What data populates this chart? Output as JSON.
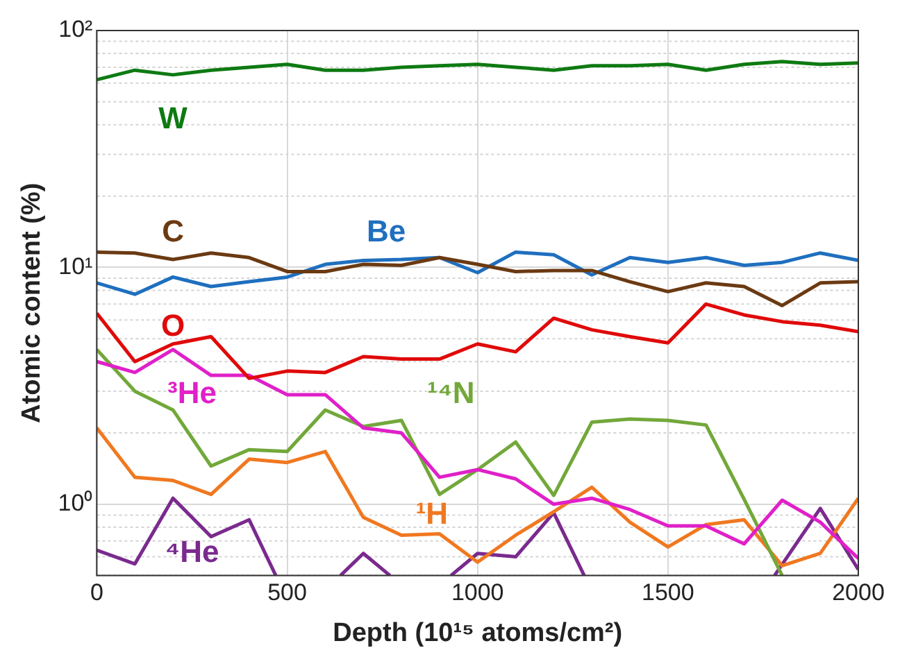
{
  "chart_data": {
    "type": "line",
    "xlabel": "Depth (10¹⁵ atoms/cm²)",
    "ylabel": "Atomic content (%)",
    "log": "y",
    "grid": true,
    "legend": false,
    "marker": "none",
    "x": [
      0,
      100,
      200,
      300,
      400,
      500,
      600,
      700,
      800,
      900,
      1000,
      1100,
      1200,
      1300,
      1400,
      1500,
      1600,
      1700,
      1800,
      1900,
      2000
    ],
    "xlim": [
      0,
      2000
    ],
    "xticks": [
      0,
      500,
      1000,
      1500,
      2000
    ],
    "ylim": [
      0.5,
      100
    ],
    "yticks": [
      {
        "value": 0.5,
        "label": null
      },
      {
        "value": 0.6,
        "label": null
      },
      {
        "value": 0.7,
        "label": null
      },
      {
        "value": 0.8,
        "label": null
      },
      {
        "value": 0.9,
        "label": null
      },
      {
        "value": 1,
        "label": "10⁰"
      },
      {
        "value": 2,
        "label": null
      },
      {
        "value": 3,
        "label": null
      },
      {
        "value": 4,
        "label": null
      },
      {
        "value": 5,
        "label": null
      },
      {
        "value": 6,
        "label": null
      },
      {
        "value": 7,
        "label": null
      },
      {
        "value": 8,
        "label": null
      },
      {
        "value": 9,
        "label": null
      },
      {
        "value": 10,
        "label": "10¹"
      },
      {
        "value": 20,
        "label": null
      },
      {
        "value": 30,
        "label": null
      },
      {
        "value": 40,
        "label": null
      },
      {
        "value": 50,
        "label": null
      },
      {
        "value": 60,
        "label": null
      },
      {
        "value": 70,
        "label": null
      },
      {
        "value": 80,
        "label": null
      },
      {
        "value": 90,
        "label": null
      },
      {
        "value": 100,
        "label": "10²"
      }
    ],
    "series": [
      {
        "name": "W",
        "color": "#0e7a12",
        "values": [
          62,
          68,
          65,
          68,
          70,
          72,
          68,
          68,
          70,
          71,
          72,
          70,
          68,
          71,
          71,
          72,
          68,
          72,
          74,
          72,
          73
        ]
      },
      {
        "name": "C",
        "color": "#6b3a12",
        "values": [
          11.6,
          11.5,
          10.8,
          11.5,
          11,
          9.6,
          9.6,
          10.3,
          10.2,
          11,
          10.3,
          9.6,
          9.7,
          9.7,
          8.7,
          7.9,
          8.6,
          8.3,
          6.9,
          8.6,
          8.7
        ]
      },
      {
        "name": "Be",
        "color": "#1f6fbf",
        "values": [
          8.6,
          7.7,
          9.1,
          8.3,
          8.7,
          9.1,
          10.3,
          10.7,
          10.8,
          11,
          9.5,
          11.6,
          11.3,
          9.3,
          11,
          10.5,
          11,
          10.2,
          10.5,
          11.5,
          10.7
        ]
      },
      {
        "name": "O",
        "color": "#e00a0a",
        "values": [
          6.4,
          4,
          4.75,
          5.1,
          3.4,
          3.65,
          3.6,
          4.2,
          4.1,
          4.1,
          4.75,
          4.4,
          6.1,
          5.45,
          5.1,
          4.8,
          7,
          6.3,
          5.9,
          5.7,
          5.35
        ]
      },
      {
        "name": "³He",
        "color": "#e020c8",
        "values": [
          4,
          3.6,
          4.5,
          3.5,
          3.5,
          2.9,
          2.9,
          2.1,
          2,
          1.3,
          1.4,
          1.28,
          1,
          1.06,
          0.95,
          0.81,
          0.81,
          0.68,
          1.04,
          0.84,
          0.59
        ]
      },
      {
        "name": "¹⁴N",
        "color": "#72a83a",
        "x": [
          0,
          100,
          200,
          300,
          400,
          500,
          600,
          700,
          800,
          900,
          1000,
          1100,
          1200,
          1300,
          1400,
          1500,
          1600,
          1700,
          1800
        ],
        "values": [
          4.5,
          3,
          2.5,
          1.45,
          1.7,
          1.67,
          2.5,
          2.13,
          2.26,
          1.1,
          1.4,
          1.83,
          1.09,
          2.22,
          2.29,
          2.26,
          2.16,
          1.05,
          0.5
        ]
      },
      {
        "name": "¹H",
        "color": "#f07820",
        "values": [
          2.1,
          1.3,
          1.26,
          1.1,
          1.55,
          1.5,
          1.67,
          0.88,
          0.74,
          0.75,
          0.57,
          0.74,
          0.93,
          1.18,
          0.84,
          0.66,
          0.82,
          0.86,
          0.55,
          0.62,
          1.06
        ]
      },
      {
        "name": "⁴He",
        "color": "#7a2a8e",
        "x": [
          0,
          100,
          200,
          300,
          400,
          470,
          500,
          640,
          700,
          770,
          850,
          930,
          1000,
          1100,
          1200,
          1280,
          1500,
          1780,
          1900,
          2000
        ],
        "values": [
          0.64,
          0.56,
          1.06,
          0.73,
          0.86,
          0.5,
          null,
          0.5,
          0.62,
          0.5,
          null,
          0.5,
          0.62,
          0.6,
          0.92,
          0.5,
          null,
          0.5,
          0.96,
          0.53
        ]
      }
    ]
  }
}
